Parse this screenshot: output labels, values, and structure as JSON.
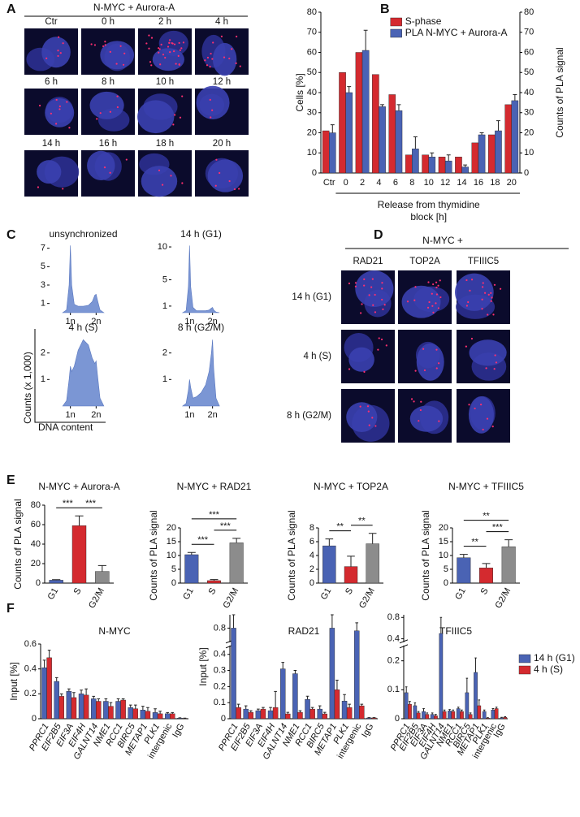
{
  "panel_A": {
    "panel": "A",
    "title": "N-MYC + Aurora-A",
    "labels": [
      "Ctr",
      "0 h",
      "2 h",
      "4 h",
      "6 h",
      "8 h",
      "10 h",
      "12 h",
      "14 h",
      "16 h",
      "18 h",
      "20 h"
    ]
  },
  "panel_D": {
    "panel": "D",
    "title": "N-MYC +",
    "columns": [
      "RAD21",
      "TOP2A",
      "TFIIIC5"
    ],
    "rows": [
      "14 h (G1)",
      "4 h (S)",
      "8 h (G2/M)"
    ]
  },
  "chart_data": [
    {
      "type": "bar",
      "panel": "B",
      "categories": [
        "Ctr",
        "0",
        "2",
        "4",
        "6",
        "8",
        "10",
        "12",
        "14",
        "16",
        "18",
        "20"
      ],
      "series": [
        {
          "name": "S-phase",
          "color": "#d42a2f",
          "values": [
            21,
            50,
            60,
            49,
            39,
            9,
            9,
            8,
            8,
            15,
            19,
            34
          ]
        },
        {
          "name": "PLA N-MYC + Aurora-A",
          "color": "#4a63b4",
          "axis": "y2",
          "values": [
            20,
            40,
            61,
            33,
            31,
            12,
            8,
            6,
            3,
            19,
            21,
            36
          ],
          "errors": [
            4,
            3,
            10,
            1,
            3,
            6,
            2,
            3,
            1,
            1,
            5,
            3
          ]
        }
      ],
      "ylim": [
        0,
        80
      ],
      "yticks": [
        0,
        10,
        20,
        30,
        40,
        50,
        60,
        70,
        80
      ],
      "y2lim": [
        0,
        80
      ],
      "y2ticks": [
        0,
        10,
        20,
        30,
        40,
        50,
        60,
        70,
        80
      ],
      "ylabel": "Cells [%]",
      "y2label": "Counts of PLA signal",
      "xlabel": [
        "Release from thymidine",
        "block [h]"
      ],
      "legend": "upper center"
    },
    {
      "type": "area",
      "panel": "C",
      "title": "unsynchronized",
      "color": "#7b96d4",
      "x": [
        0.7,
        0.85,
        0.95,
        1.0,
        1.05,
        1.15,
        1.3,
        1.5,
        1.7,
        1.85,
        1.95,
        2.0,
        2.05,
        2.15,
        2.3
      ],
      "values": [
        0,
        0.3,
        3,
        7.3,
        3,
        0.9,
        0.7,
        0.7,
        0.8,
        1.2,
        1.9,
        2.0,
        1.4,
        0.3,
        0
      ],
      "xlim": [
        0,
        3
      ],
      "xticks": [
        {
          "value": 1,
          "label": "1n"
        },
        {
          "value": 2,
          "label": "2n"
        }
      ],
      "ylim": [
        0,
        7.5
      ],
      "yticks": [
        1,
        3,
        5,
        7
      ]
    },
    {
      "type": "area",
      "title": "14 h (G1)",
      "color": "#7b96d4",
      "x": [
        0.7,
        0.85,
        0.95,
        1.0,
        1.05,
        1.15,
        1.3,
        1.5,
        1.7,
        1.85,
        1.95,
        2.0,
        2.05,
        2.15,
        2.3
      ],
      "values": [
        0,
        0.3,
        4,
        10.2,
        4,
        0.8,
        0.3,
        0.3,
        0.3,
        0.4,
        0.7,
        0.8,
        0.4,
        0.1,
        0
      ],
      "xlim": [
        0,
        3
      ],
      "xticks": [
        {
          "value": 1,
          "label": "1n"
        },
        {
          "value": 2,
          "label": "2n"
        }
      ],
      "ylim": [
        0,
        10.5
      ],
      "yticks": [
        1,
        5,
        10
      ]
    },
    {
      "type": "area",
      "title": "4 h (S)",
      "color": "#7b96d4",
      "x": [
        0.7,
        0.85,
        0.95,
        1.0,
        1.05,
        1.15,
        1.3,
        1.5,
        1.7,
        1.85,
        1.95,
        2.0,
        2.05,
        2.15,
        2.3
      ],
      "values": [
        0,
        0.2,
        1.0,
        1.5,
        1.3,
        1.5,
        2.1,
        2.5,
        2.3,
        1.8,
        1.6,
        1.7,
        1.2,
        0.3,
        0
      ],
      "xlim": [
        0,
        3
      ],
      "xticks": [
        {
          "value": 1,
          "label": "1n"
        },
        {
          "value": 2,
          "label": "2n"
        }
      ],
      "ylim": [
        0,
        2.6
      ],
      "yticks": [
        1,
        2
      ],
      "ylabel": "Counts (x 1,000)",
      "xlabel": "DNA content"
    },
    {
      "type": "area",
      "title": "8 h (G2/M)",
      "color": "#7b96d4",
      "x": [
        0.7,
        0.85,
        0.95,
        1.0,
        1.05,
        1.15,
        1.3,
        1.5,
        1.7,
        1.85,
        1.95,
        2.0,
        2.05,
        2.15,
        2.3
      ],
      "values": [
        0,
        0.1,
        0.6,
        1.0,
        0.7,
        0.3,
        0.35,
        0.5,
        0.8,
        1.3,
        2.0,
        2.5,
        1.4,
        0.3,
        0
      ],
      "xlim": [
        0,
        3
      ],
      "xticks": [
        {
          "value": 1,
          "label": "1n"
        },
        {
          "value": 2,
          "label": "2n"
        }
      ],
      "ylim": [
        0,
        2.6
      ],
      "yticks": [
        1,
        2
      ]
    },
    {
      "type": "bar",
      "panel": "E",
      "title": "N-MYC + Aurora-A",
      "categories": [
        "G1",
        "S",
        "G2/M"
      ],
      "values": [
        3,
        59,
        12
      ],
      "errors": [
        0.5,
        10,
        6
      ],
      "colors": [
        "#4a63b4",
        "#d42a2f",
        "#8c8c8c"
      ],
      "ylim": [
        0,
        80
      ],
      "yticks": [
        0,
        20,
        40,
        60,
        80
      ],
      "ylabel": "Counts of PLA signal",
      "significance": [
        {
          "pair": [
            0,
            1
          ],
          "label": "***"
        },
        {
          "pair": [
            1,
            2
          ],
          "label": "***"
        }
      ]
    },
    {
      "type": "bar",
      "title": "N-MYC + RAD21",
      "categories": [
        "G1",
        "S",
        "G2/M"
      ],
      "values": [
        10.3,
        0.9,
        14.6
      ],
      "errors": [
        0.8,
        0.4,
        1.6
      ],
      "colors": [
        "#4a63b4",
        "#d42a2f",
        "#8c8c8c"
      ],
      "ylim": [
        0,
        20
      ],
      "yticks": [
        0,
        5,
        10,
        15,
        20
      ],
      "ylabel": "Counts of PLA signal",
      "significance": [
        {
          "pair": [
            0,
            2
          ],
          "label": "***"
        },
        {
          "pair": [
            1,
            2
          ],
          "label": "***"
        },
        {
          "pair": [
            0,
            1
          ],
          "label": "***"
        }
      ]
    },
    {
      "type": "bar",
      "title": "N-MYC + TOP2A",
      "categories": [
        "G1",
        "S",
        "G2/M"
      ],
      "values": [
        5.4,
        2.4,
        5.7
      ],
      "errors": [
        1,
        1.5,
        1.5
      ],
      "colors": [
        "#4a63b4",
        "#d42a2f",
        "#8c8c8c"
      ],
      "ylim": [
        0,
        8
      ],
      "yticks": [
        0,
        2,
        4,
        6,
        8
      ],
      "ylabel": "Counts of PLA signal",
      "significance": [
        {
          "pair": [
            0,
            1
          ],
          "label": "**"
        },
        {
          "pair": [
            1,
            2
          ],
          "label": "**"
        }
      ]
    },
    {
      "type": "bar",
      "title": "N-MYC + TFIIIC5",
      "categories": [
        "G1",
        "S",
        "G2/M"
      ],
      "values": [
        9.2,
        5.5,
        13.2
      ],
      "errors": [
        1.2,
        1.6,
        2.5
      ],
      "colors": [
        "#4a63b4",
        "#d42a2f",
        "#8c8c8c"
      ],
      "ylim": [
        0,
        20
      ],
      "yticks": [
        0,
        5,
        10,
        15,
        20
      ],
      "ylabel": "Counts of PLA signal",
      "significance": [
        {
          "pair": [
            0,
            2
          ],
          "label": "**"
        },
        {
          "pair": [
            1,
            2
          ],
          "label": "***"
        },
        {
          "pair": [
            0,
            1
          ],
          "label": "**"
        }
      ]
    },
    {
      "type": "bar",
      "panel": "F",
      "title": "N-MYC",
      "categories": [
        "PPRC1",
        "EIF2B5",
        "EIF3A",
        "EIF4H",
        "GALNT14",
        "NME1",
        "RCC1",
        "BIRC5",
        "METAP1",
        "PLK1",
        "intergenic",
        "IgG"
      ],
      "series": [
        {
          "color": "#4a63b4",
          "values": [
            0.41,
            0.3,
            0.22,
            0.2,
            0.16,
            0.14,
            0.14,
            0.09,
            0.07,
            0.05,
            0.04,
            0.005
          ],
          "errors": [
            0.06,
            0.03,
            0.02,
            0.03,
            0.02,
            0.02,
            0.02,
            0.02,
            0.03,
            0.03,
            0.01,
            0.002
          ]
        },
        {
          "color": "#d42a2f",
          "values": [
            0.49,
            0.18,
            0.17,
            0.19,
            0.14,
            0.1,
            0.15,
            0.08,
            0.06,
            0.04,
            0.04,
            0.003
          ],
          "errors": [
            0.06,
            0.02,
            0.04,
            0.05,
            0.02,
            0.03,
            0.01,
            0.03,
            0.03,
            0.02,
            0.01,
            0.002
          ]
        }
      ],
      "ylim": [
        0,
        0.6
      ],
      "yticks": [
        0,
        0.2,
        0.4,
        0.6
      ],
      "ylabel": "Input [%]"
    },
    {
      "type": "bar",
      "title": "RAD21",
      "categories": [
        "PPRC1",
        "EIF2B5",
        "EIF3A",
        "EIF4H",
        "GALNT14",
        "NME1",
        "RCC1",
        "BIRC5",
        "METAP1",
        "PLK1",
        "intergenic",
        "IgG"
      ],
      "series": [
        {
          "color": "#4a63b4",
          "values": [
            0.8,
            0.06,
            0.05,
            0.05,
            0.31,
            0.28,
            0.12,
            0.06,
            0.8,
            0.11,
            0.79,
            0.005
          ],
          "errors": [
            0.05,
            0.02,
            0.01,
            0.02,
            0.04,
            0.02,
            0.02,
            0.02,
            0.05,
            0.04,
            0.03,
            0.002
          ]
        },
        {
          "color": "#d42a2f",
          "values": [
            0.07,
            0.04,
            0.06,
            0.07,
            0.03,
            0.04,
            0.06,
            0.03,
            0.18,
            0.07,
            0.08,
            0.005
          ],
          "errors": [
            0.02,
            0.01,
            0.01,
            0.1,
            0.01,
            0.01,
            0.01,
            0.01,
            0.06,
            0.02,
            0.01,
            0.002
          ]
        }
      ],
      "ylim": [
        0,
        0.85
      ],
      "yticks": [
        0,
        0.1,
        0.2,
        0.3,
        0.4,
        0.8
      ],
      "axis_break": [
        0.45,
        0.75
      ],
      "ylabel": "Input [%]"
    },
    {
      "type": "bar",
      "title": "TFIIIC5",
      "categories": [
        "PPRC1",
        "EIF2B5",
        "EIF3A",
        "EIF4H",
        "GALNT14",
        "NME1",
        "RCC1",
        "BIRC5",
        "METAP1",
        "PLK1",
        "intergenic",
        "IgG"
      ],
      "series": [
        {
          "name": "14 h (G1)",
          "color": "#4a63b4",
          "values": [
            0.09,
            0.045,
            0.025,
            0.015,
            0.5,
            0.027,
            0.035,
            0.09,
            0.16,
            0.025,
            0.03,
            0.003
          ],
          "errors": [
            0.02,
            0.01,
            0.01,
            0.005,
            0.3,
            0.005,
            0.005,
            0.05,
            0.05,
            0.005,
            0.005,
            0.002
          ]
        },
        {
          "name": "4 h (S)",
          "color": "#d42a2f",
          "values": [
            0.05,
            0.02,
            0.015,
            0.01,
            0.025,
            0.025,
            0.025,
            0.015,
            0.045,
            0.002,
            0.035,
            0.005
          ],
          "errors": [
            0.01,
            0.005,
            0.005,
            0.005,
            0.005,
            0.005,
            0.005,
            0.005,
            0.02,
            0.002,
            0.005,
            0.002
          ]
        }
      ],
      "ylim": [
        0,
        0.85
      ],
      "yticks": [
        0,
        0.1,
        0.2,
        0.4,
        0.8
      ],
      "axis_break": [
        0.25,
        0.35
      ],
      "legend": "right"
    }
  ]
}
